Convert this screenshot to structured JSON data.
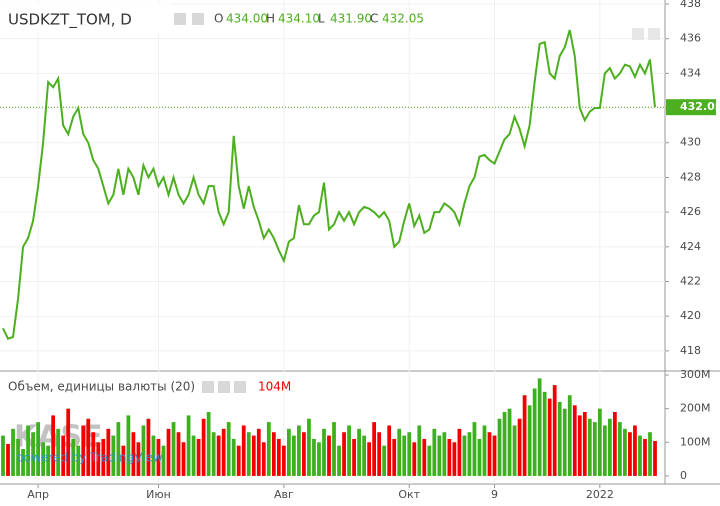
{
  "chart_data": [
    {
      "type": "line",
      "title": "USDKZT_TOM, D",
      "ohlc": [
        {
          "label": "O",
          "value": "434.00"
        },
        {
          "label": "H",
          "value": "434.10"
        },
        {
          "label": "L",
          "value": "431.90"
        },
        {
          "label": "C",
          "value": "432.05"
        }
      ],
      "categories": [
        null,
        null,
        null,
        null,
        null,
        null,
        null,
        "Апр",
        null,
        null,
        null,
        null,
        null,
        null,
        null,
        null,
        null,
        null,
        null,
        null,
        null,
        null,
        null,
        null,
        null,
        null,
        null,
        null,
        null,
        null,
        null,
        "Июн",
        null,
        null,
        null,
        null,
        null,
        null,
        null,
        null,
        null,
        null,
        null,
        null,
        null,
        null,
        null,
        null,
        null,
        null,
        null,
        null,
        null,
        null,
        null,
        null,
        "Авг",
        null,
        null,
        null,
        null,
        null,
        null,
        null,
        null,
        null,
        null,
        null,
        null,
        null,
        null,
        null,
        null,
        null,
        null,
        null,
        null,
        null,
        null,
        null,
        null,
        "Окт",
        null,
        null,
        null,
        null,
        null,
        null,
        null,
        null,
        null,
        null,
        null,
        null,
        null,
        null,
        null,
        null,
        "9",
        null,
        null,
        null,
        null,
        null,
        null,
        null,
        null,
        null,
        null,
        null,
        null,
        null,
        null,
        null,
        null,
        null,
        null,
        null,
        null,
        "2022",
        null,
        null,
        null,
        null,
        null,
        null,
        null,
        null,
        null,
        null,
        null
      ],
      "values": [
        419.3,
        418.7,
        418.8,
        421,
        424,
        424.5,
        425.5,
        427.5,
        430,
        433.5,
        433.2,
        433.7,
        431,
        430.5,
        431.5,
        432,
        430.5,
        430,
        429,
        428.5,
        427.5,
        426.5,
        427,
        428.5,
        427,
        428.5,
        428,
        427,
        428.7,
        428,
        428.5,
        427.5,
        428,
        427,
        428,
        427,
        426.5,
        427,
        428,
        427,
        426.5,
        427.5,
        427.5,
        426,
        425.3,
        426,
        430.4,
        427.5,
        426.2,
        427.5,
        426.3,
        425.5,
        424.5,
        425,
        424.5,
        423.8,
        423.2,
        424.3,
        424.5,
        426.4,
        425.3,
        425.3,
        425.8,
        426,
        427.7,
        425,
        425.3,
        426,
        425.5,
        426,
        425.3,
        426,
        426.3,
        426.2,
        426,
        425.7,
        426,
        425.5,
        424,
        424.3,
        425.5,
        426.5,
        425.2,
        425.8,
        424.8,
        425,
        426,
        426,
        426.5,
        426.3,
        426,
        425.3,
        426.5,
        427.5,
        428,
        429.2,
        429.3,
        429,
        428.8,
        429.5,
        430.2,
        430.5,
        431.5,
        430.8,
        429.8,
        431,
        433.5,
        435.7,
        435.8,
        434,
        433.7,
        435,
        435.5,
        436.5,
        435,
        432,
        431.3,
        431.8,
        432,
        432,
        434,
        434.3,
        433.7,
        434,
        434.5,
        434.4,
        433.8,
        434.5,
        434,
        434.8,
        432.05
      ],
      "color": "#4caf1f",
      "ylim": [
        416.84,
        438.23
      ],
      "yticks": [
        418,
        420,
        422,
        424,
        426,
        428,
        430,
        432,
        434,
        436,
        438
      ],
      "grid": true
    },
    {
      "type": "bar",
      "title": "Объем, единицы валюты (20)",
      "legend_value": "104M",
      "values": [
        120,
        95,
        140,
        110,
        80,
        150,
        130,
        160,
        100,
        90,
        180,
        140,
        120,
        200,
        110,
        90,
        150,
        170,
        130,
        100,
        110,
        140,
        120,
        160,
        90,
        180,
        130,
        100,
        150,
        170,
        120,
        110,
        90,
        140,
        160,
        130,
        100,
        180,
        120,
        110,
        170,
        190,
        130,
        120,
        140,
        160,
        110,
        90,
        150,
        130,
        120,
        140,
        100,
        160,
        130,
        110,
        90,
        140,
        120,
        150,
        130,
        170,
        110,
        100,
        140,
        120,
        160,
        90,
        130,
        150,
        110,
        140,
        120,
        100,
        160,
        130,
        90,
        150,
        110,
        140,
        120,
        130,
        100,
        150,
        110,
        90,
        140,
        120,
        130,
        110,
        100,
        140,
        120,
        130,
        160,
        110,
        150,
        130,
        120,
        170,
        190,
        200,
        150,
        170,
        240,
        210,
        260,
        290,
        250,
        230,
        270,
        220,
        200,
        240,
        210,
        180,
        190,
        170,
        160,
        200,
        150,
        170,
        190,
        160,
        140,
        130,
        150,
        120,
        110,
        130,
        104
      ],
      "up_color": "#3cb01e",
      "down_color": "#f20000",
      "ylim": [
        -24,
        312
      ],
      "yticks": [
        0,
        {
          "value": 100,
          "label": "100M"
        },
        {
          "value": 200,
          "label": "200M"
        },
        {
          "value": 300,
          "label": "300M"
        }
      ],
      "watermark": [
        "KASE",
        "powered by TradingView"
      ]
    }
  ]
}
